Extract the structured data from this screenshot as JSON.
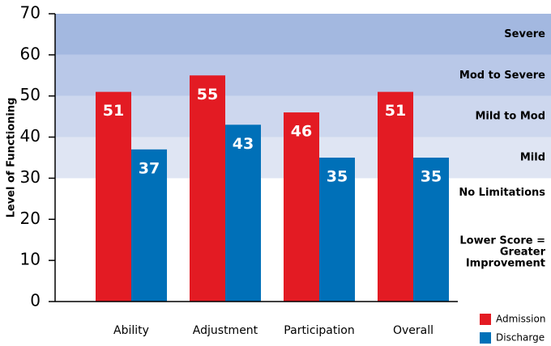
{
  "chart_data": {
    "type": "bar",
    "y_label": "Level of Functioning",
    "categories": [
      "Ability",
      "Adjustment",
      "Participation",
      "Overall"
    ],
    "series": [
      {
        "name": "Admission",
        "color": "#e31b23",
        "values": [
          51,
          55,
          46,
          51
        ]
      },
      {
        "name": "Discharge",
        "color": "#0070b8",
        "values": [
          37,
          43,
          35,
          35
        ]
      }
    ],
    "ylim": [
      0,
      70
    ],
    "yticks": [
      0,
      10,
      20,
      30,
      40,
      50,
      60,
      70
    ],
    "bands": [
      {
        "label": "No Limitations",
        "from": 0,
        "to": 30,
        "color": "#ffffff"
      },
      {
        "label": "Mild",
        "from": 30,
        "to": 40,
        "color": "#dfe5f3"
      },
      {
        "label": "Mild to Mod",
        "from": 40,
        "to": 50,
        "color": "#cdd7ee"
      },
      {
        "label": "Mod to Severe",
        "from": 50,
        "to": 60,
        "color": "#b9c8e8"
      },
      {
        "label": "Severe",
        "from": 60,
        "to": 70,
        "color": "#a3b8e0"
      }
    ],
    "annotation": [
      "Lower Score =",
      "Greater",
      "Improvement"
    ],
    "legend": "bottom-right"
  }
}
